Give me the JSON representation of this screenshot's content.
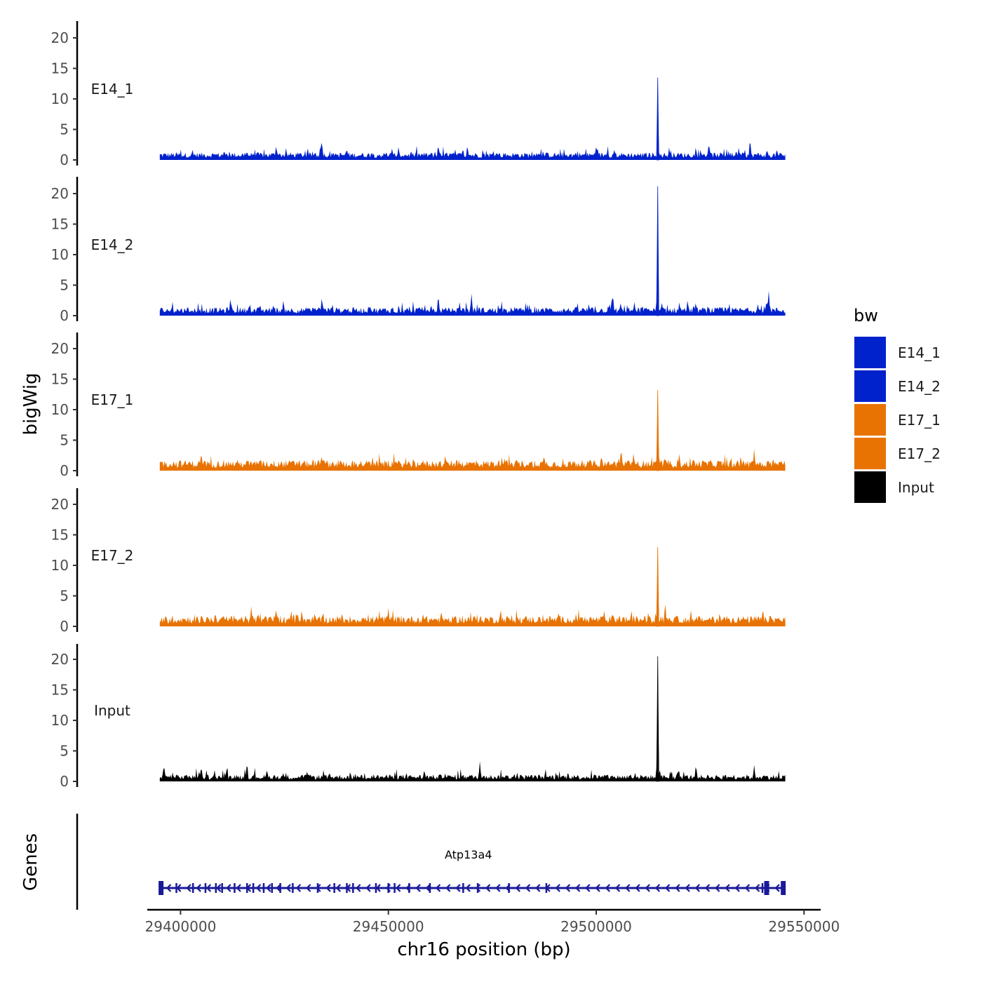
{
  "chart_data": {
    "type": "area",
    "ylabel": "bigWig",
    "genes_label": "Genes",
    "xlabel": "chr16 position (bp)",
    "x_ticks": [
      29400000,
      29450000,
      29500000,
      29550000
    ],
    "x_tick_labels": [
      "29400000",
      "29450000",
      "29500000",
      "29550000"
    ],
    "xlim": [
      29392000,
      29554000
    ],
    "data_range": [
      29395000,
      29545500
    ],
    "y_ticks": [
      0,
      5,
      10,
      15,
      20
    ],
    "y_tick_labels": [
      "0",
      "5",
      "10",
      "15",
      "20"
    ],
    "ylim": [
      0,
      20
    ],
    "series": [
      {
        "name": "E14_1",
        "color": "#0022CC",
        "baseline": 1.0,
        "peak_x": 29514800,
        "peak_y": 13.5,
        "bumps": [
          [
            29416000,
            1.6
          ],
          [
            29423000,
            2.5
          ],
          [
            29434000,
            3.3
          ],
          [
            29440000,
            2.0
          ],
          [
            29469000,
            2.6
          ],
          [
            29500000,
            2.4
          ],
          [
            29537000,
            3.7
          ],
          [
            29527000,
            2.2
          ]
        ]
      },
      {
        "name": "E14_2",
        "color": "#0022CC",
        "baseline": 1.1,
        "peak_x": 29514800,
        "peak_y": 21.2,
        "bumps": [
          [
            29412000,
            3.1
          ],
          [
            29434000,
            3.2
          ],
          [
            29462000,
            3.6
          ],
          [
            29470000,
            3.8
          ],
          [
            29504000,
            3.8
          ],
          [
            29541500,
            4.3
          ],
          [
            29520000,
            2.4
          ]
        ]
      },
      {
        "name": "E17_1",
        "color": "#E87302",
        "baseline": 1.4,
        "peak_x": 29514800,
        "peak_y": 13.2,
        "bumps": [
          [
            29405000,
            3.2
          ],
          [
            29434000,
            2.6
          ],
          [
            29456000,
            2.2
          ],
          [
            29478000,
            2.3
          ],
          [
            29506000,
            3.9
          ],
          [
            29509000,
            3.1
          ],
          [
            29520000,
            3.0
          ],
          [
            29538000,
            3.6
          ]
        ]
      },
      {
        "name": "E17_2",
        "color": "#E87302",
        "baseline": 1.4,
        "peak_x": 29514800,
        "peak_y": 13.0,
        "bumps": [
          [
            29417000,
            3.3
          ],
          [
            29423000,
            3.1
          ],
          [
            29450000,
            3.0
          ],
          [
            29477000,
            3.1
          ],
          [
            29516600,
            4.2
          ],
          [
            29528000,
            2.1
          ],
          [
            29540000,
            2.3
          ]
        ]
      },
      {
        "name": "Input",
        "color": "#000000",
        "baseline": 0.9,
        "peak_x": 29514800,
        "peak_y": 20.5,
        "bumps": [
          [
            29396000,
            2.9
          ],
          [
            29405000,
            2.6
          ],
          [
            29416000,
            3.3
          ],
          [
            29472000,
            3.3
          ],
          [
            29524000,
            2.9
          ],
          [
            29538000,
            2.7
          ]
        ]
      }
    ],
    "legend": {
      "title": "bw",
      "position": "right",
      "entries": [
        {
          "label": "E14_1",
          "color": "#0022CC"
        },
        {
          "label": "E14_2",
          "color": "#0022CC"
        },
        {
          "label": "E17_1",
          "color": "#E87302"
        },
        {
          "label": "E17_2",
          "color": "#E87302"
        },
        {
          "label": "Input",
          "color": "#000000"
        }
      ]
    },
    "gene": {
      "name": "Atp13a4",
      "start": 29395300,
      "end": 29545200,
      "strand": "-",
      "color": "#1A1A99",
      "exons": [
        29395300,
        29399000,
        29403000,
        29406000,
        29408500,
        29410000,
        29413000,
        29416000,
        29417500,
        29420000,
        29422000,
        29424000,
        29427000,
        29433000,
        29437000,
        29440000,
        29441500,
        29447000,
        29450000,
        29451500,
        29455000,
        29460000,
        29468000,
        29471500,
        29479000,
        29488000,
        29540000,
        29541000,
        29545000
      ]
    },
    "grid": false
  }
}
